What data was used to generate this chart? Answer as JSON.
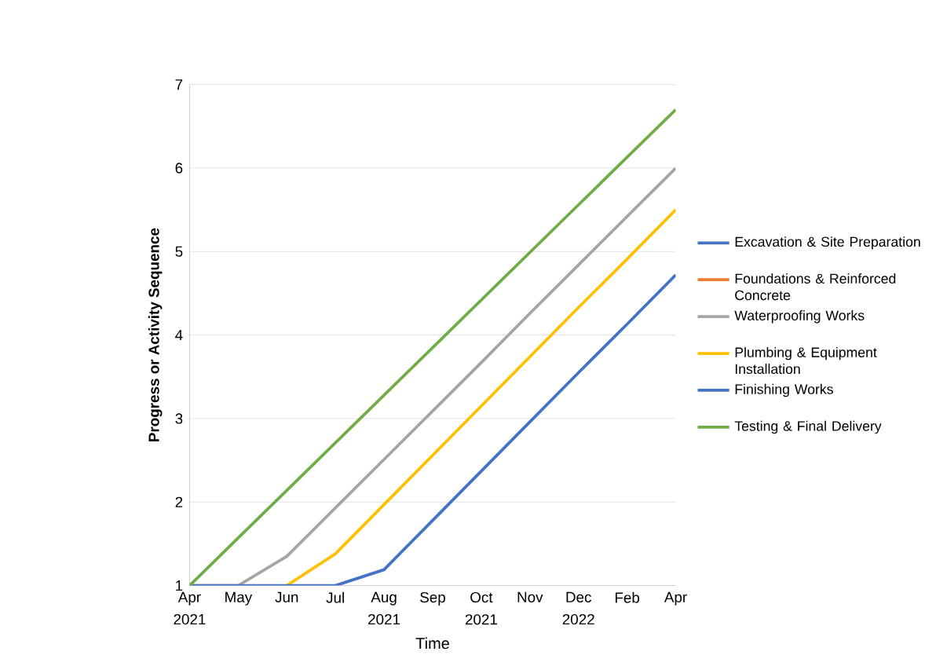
{
  "chart_data": {
    "type": "line",
    "xlabel": "Time",
    "ylabel": "Progress or Activity Sequence",
    "categories": [
      "Apr 2021",
      "May",
      "Jun",
      "Jul",
      "Aug 2021",
      "Sep",
      "Oct 2021",
      "Nov",
      "Dec 2022",
      "Feb",
      "Apr"
    ],
    "ylim": [
      1,
      7
    ],
    "yticks": [
      1,
      2,
      3,
      4,
      5,
      6,
      7
    ],
    "grid": "y",
    "legend": "right",
    "marker": "none",
    "line_style": "solid",
    "series": [
      {
        "name": "Excavation & Site Preparation",
        "color": "#4472c4",
        "values": [
          null,
          null,
          null,
          null,
          null,
          null,
          null,
          null,
          null,
          null,
          null
        ]
      },
      {
        "name": "Foundations & Reinforced Concrete",
        "color": "#ed7d31",
        "values": [
          null,
          null,
          null,
          null,
          null,
          null,
          null,
          null,
          null,
          null,
          null
        ]
      },
      {
        "name": "Waterproofing Works",
        "color": "#a5a5a5",
        "values": [
          1,
          1,
          1.35,
          1.93,
          2.51,
          3.09,
          3.67,
          4.26,
          4.84,
          5.42,
          6.0
        ]
      },
      {
        "name": "Plumbing & Equipment Installation",
        "color": "#ffc000",
        "values": [
          null,
          null,
          1,
          1.38,
          1.97,
          2.56,
          3.15,
          3.74,
          4.33,
          4.91,
          5.5
        ]
      },
      {
        "name": "Finishing Works",
        "color": "#4472c4",
        "values": [
          1,
          1,
          1,
          1,
          1.19,
          1.78,
          2.37,
          2.96,
          3.55,
          4.13,
          4.72
        ]
      },
      {
        "name": "Testing & Final Delivery",
        "color": "#70ad47",
        "values": [
          1,
          1.57,
          2.14,
          2.71,
          3.28,
          3.85,
          4.42,
          4.99,
          5.56,
          6.13,
          6.7
        ]
      }
    ]
  }
}
